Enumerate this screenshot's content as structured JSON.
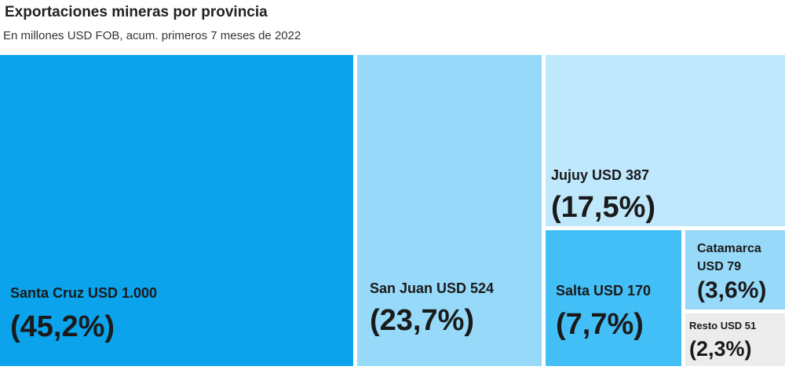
{
  "header": {
    "title": "Exportaciones mineras por provincia",
    "subtitle": "En millones USD FOB, acum. primeros 7 meses de 2022"
  },
  "chart_data": {
    "type": "treemap",
    "title": "Exportaciones mineras por provincia",
    "subtitle": "En millones USD FOB, acum. primeros 7 meses de 2022",
    "unit": "USD (millones)",
    "items": [
      {
        "name": "Santa Cruz",
        "value": 1000,
        "value_label": "USD 1.000",
        "label": "Santa Cruz USD 1.000",
        "share_label": "(45,2%)",
        "share": 45.2,
        "color": "#0aa3ec"
      },
      {
        "name": "San Juan",
        "value": 524,
        "value_label": "USD 524",
        "label": "San Juan USD 524",
        "share_label": "(23,7%)",
        "share": 23.7,
        "color": "#96d9f9"
      },
      {
        "name": "Jujuy",
        "value": 387,
        "value_label": "USD 387",
        "label": "Jujuy USD 387",
        "share_label": "(17,5%)",
        "share": 17.5,
        "color": "#bfe8fc"
      },
      {
        "name": "Salta",
        "value": 170,
        "value_label": "USD 170",
        "label": "Salta USD 170",
        "share_label": "(7,7%)",
        "share": 7.7,
        "color": "#43bff8"
      },
      {
        "name": "Catamarca",
        "value": 79,
        "value_label": "USD 79",
        "label_lines": [
          "Catamarca",
          "USD 79"
        ],
        "share_label": "(3,6%)",
        "share": 3.6,
        "color": "#96d9f9"
      },
      {
        "name": "Resto",
        "value": 51,
        "value_label": "USD 51",
        "label": "Resto USD 51",
        "share_label": "(2,3%)",
        "share": 2.3,
        "color": "#ececec"
      }
    ]
  }
}
